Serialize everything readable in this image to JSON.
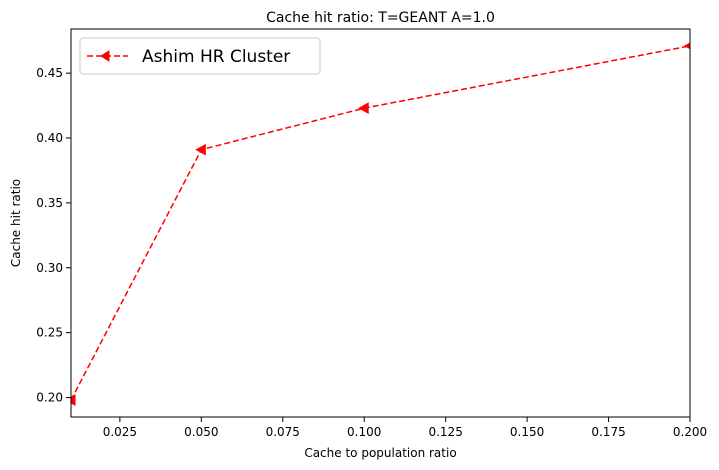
{
  "chart_data": {
    "type": "line",
    "title": "Cache hit ratio: T=GEANT A=1.0",
    "xlabel": "Cache to population ratio",
    "ylabel": "Cache hit ratio",
    "xlim": [
      0.01,
      0.2
    ],
    "ylim": [
      0.185,
      0.484
    ],
    "xticks": [
      "0.025",
      "0.050",
      "0.075",
      "0.100",
      "0.125",
      "0.150",
      "0.175",
      "0.200"
    ],
    "yticks": [
      "0.20",
      "0.25",
      "0.30",
      "0.35",
      "0.40",
      "0.45"
    ],
    "grid": false,
    "legend": {
      "placement": "top-left",
      "entries": [
        "Ashim HR Cluster"
      ]
    },
    "series": [
      {
        "name": "Ashim HR Cluster",
        "color": "#ff0000",
        "linestyle": "dashed",
        "marker": "triangle-left",
        "x": [
          0.01,
          0.05,
          0.1,
          0.2
        ],
        "y": [
          0.198,
          0.391,
          0.423,
          0.471
        ]
      }
    ]
  }
}
